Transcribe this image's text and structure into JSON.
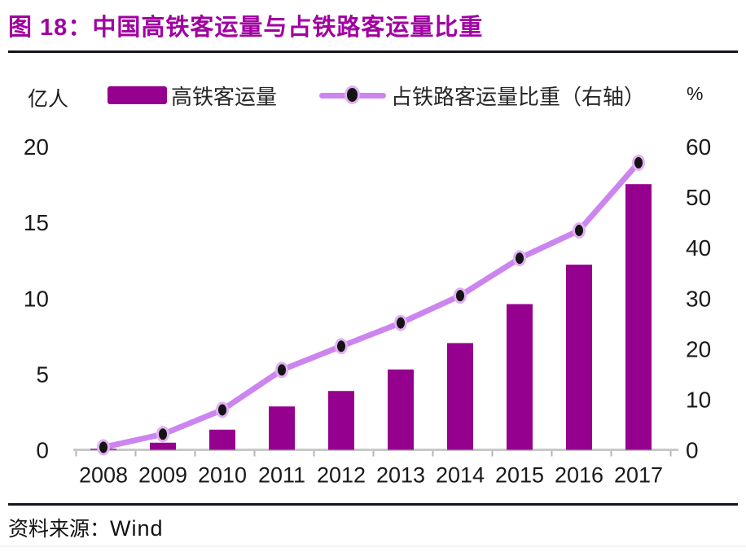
{
  "header": {
    "title": "图 18：中国高铁客运量与占铁路客运量比重"
  },
  "legend": {
    "bar_label": "高铁客运量",
    "line_label": "占铁路客运量比重（右轴）",
    "left_unit": "亿人",
    "right_unit": "%"
  },
  "source": {
    "prefix": "资料来源：",
    "name": "Wind"
  },
  "colors": {
    "bar": "#96008E",
    "line": "#CC85EE",
    "marker": "#141414",
    "marker_ring": "#E3AFF6",
    "title": "#A100A1",
    "rule": "#15151E",
    "axis_line": "#C8C8C8",
    "tick_mark": "#B5B5B5",
    "tick_text": "#1A1A1A"
  },
  "chart_data": {
    "type": "bar",
    "subtype": "bar+line-dual-axis",
    "title": "中国高铁客运量与占铁路客运量比重",
    "categories": [
      "2008",
      "2009",
      "2010",
      "2011",
      "2012",
      "2013",
      "2014",
      "2015",
      "2016",
      "2017"
    ],
    "series": [
      {
        "name": "高铁客运量",
        "type": "bar",
        "axis": "left",
        "unit": "亿人",
        "values": [
          0.07,
          0.47,
          1.33,
          2.86,
          3.88,
          5.3,
          7.04,
          9.61,
          12.21,
          17.52
        ]
      },
      {
        "name": "占铁路客运量比重（右轴）",
        "type": "line",
        "axis": "right",
        "unit": "%",
        "values": [
          0.5,
          3.1,
          7.9,
          15.8,
          20.5,
          25.1,
          30.5,
          37.9,
          43.4,
          56.8
        ]
      }
    ],
    "left_axis": {
      "label": "亿人",
      "ticks": [
        0,
        5,
        10,
        15,
        20
      ],
      "range": [
        0,
        20
      ]
    },
    "right_axis": {
      "label": "%",
      "ticks": [
        0,
        10,
        20,
        30,
        40,
        50,
        60
      ],
      "range": [
        0,
        60
      ]
    },
    "grid": false,
    "legend_position": "top"
  }
}
